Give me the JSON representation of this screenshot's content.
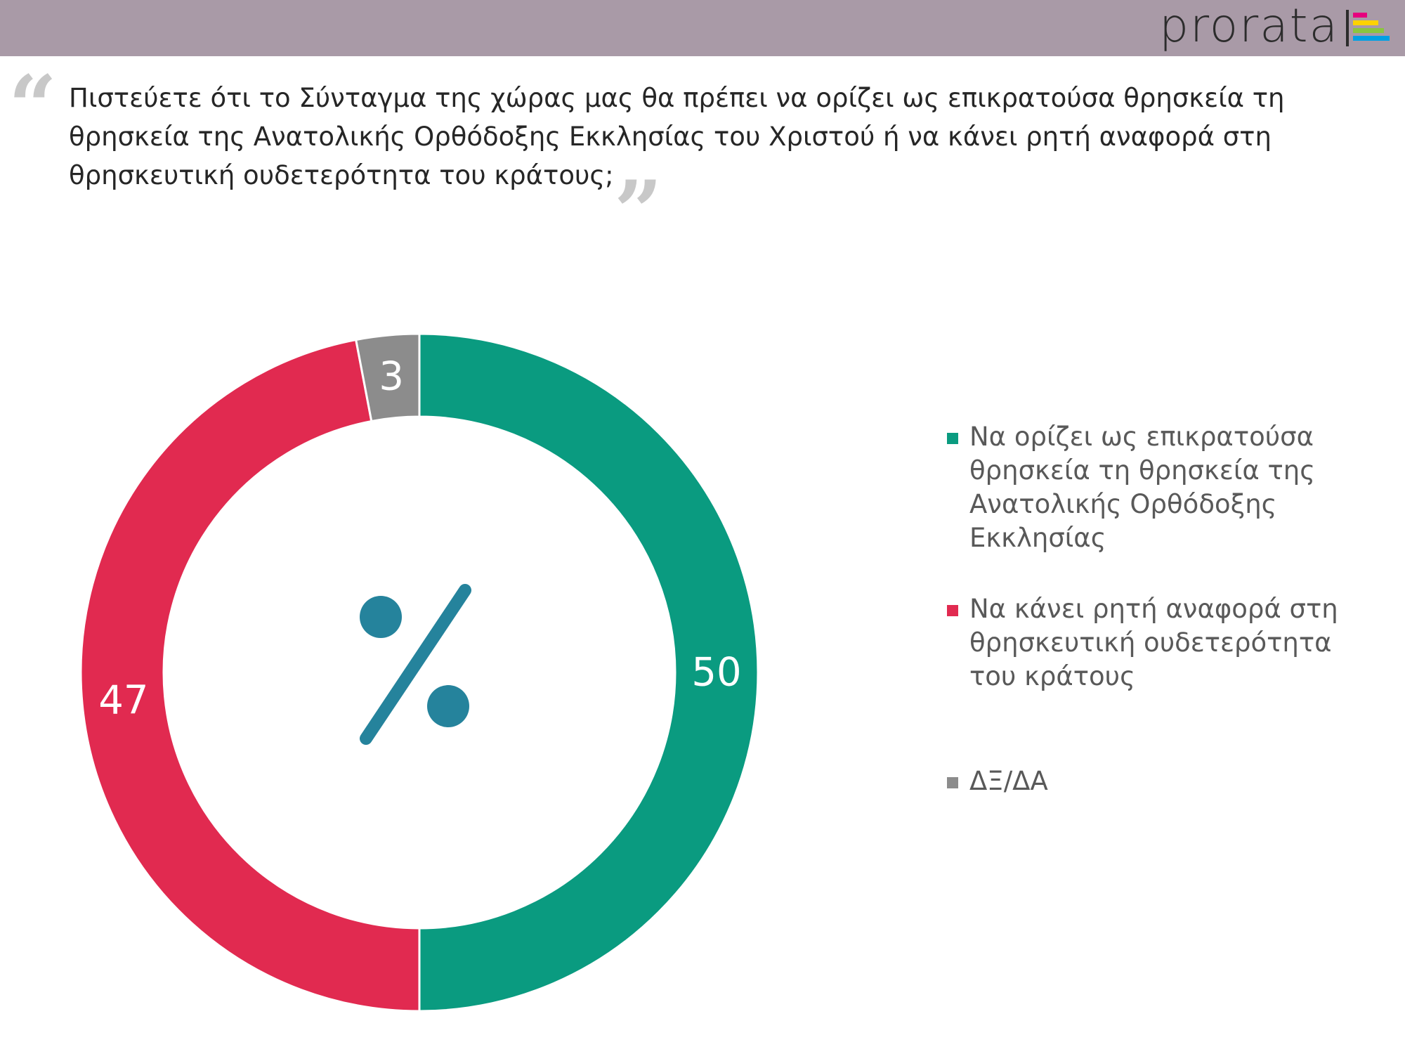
{
  "brand": {
    "name": "prorata"
  },
  "question": "Πιστεύετε ότι το Σύνταγμα της χώρας μας θα πρέπει να ορίζει ως επικρατούσα θρησκεία τη θρησκεία της Ανατολικής Ορθόδοξης Εκκλησίας του Χριστού ή να κάνει ρητή αναφορά στη θρησκευτική ουδετερότητα του κράτους;",
  "chart_data": {
    "type": "pie",
    "style": "donut",
    "center_icon": "percent-icon",
    "legend_position": "right",
    "series": [
      {
        "label": "Να ορίζει ως επικρατούσα θρησκεία τη θρησκεία της Ανατολικής Ορθόδοξης Εκκλησίας",
        "value": 50,
        "color": "#0a9b80"
      },
      {
        "label": "Να κάνει ρητή αναφορά στη θρησκευτική ουδετερότητα του κράτους",
        "value": 47,
        "color": "#e12a50"
      },
      {
        "label": "ΔΞ/ΔΑ",
        "value": 3,
        "color": "#8c8c8c"
      }
    ]
  },
  "colors": {
    "header_bar": "#a99aa7",
    "icon": "#25839c",
    "quote_marks": "#c8c8c8"
  }
}
